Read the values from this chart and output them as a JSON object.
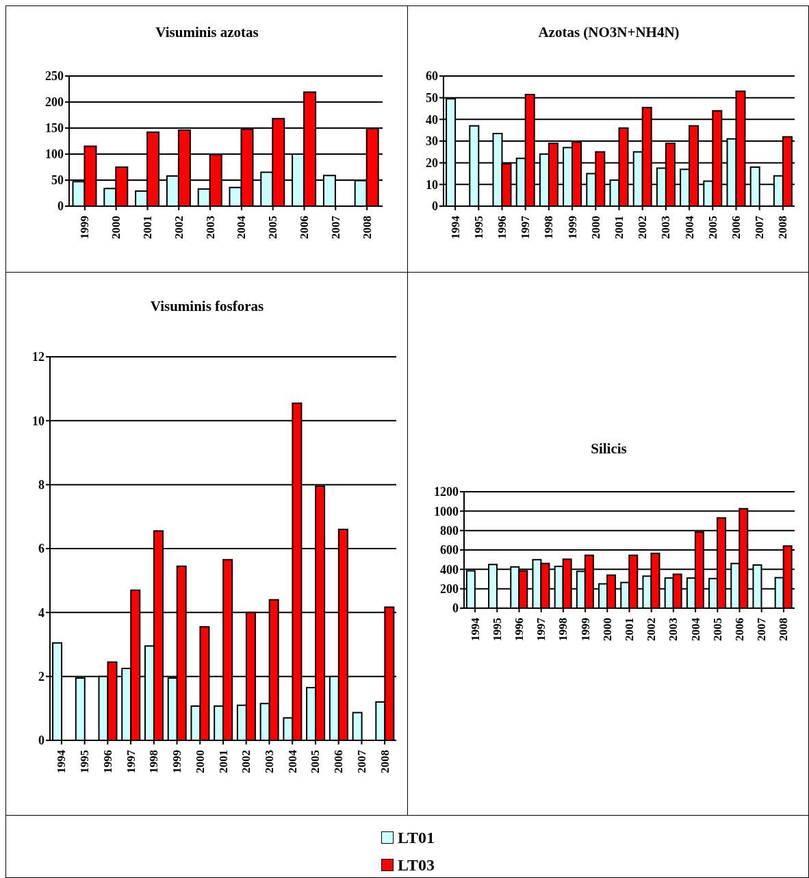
{
  "chart_data": [
    {
      "type": "bar",
      "title": "Visuminis azotas",
      "categories": [
        "1999",
        "2000",
        "2001",
        "2002",
        "2003",
        "2004",
        "2005",
        "2006",
        "2007",
        "2008"
      ],
      "series": [
        {
          "name": "LT01",
          "color": "#ccffff",
          "values": [
            47,
            34,
            29,
            58,
            33,
            36,
            65,
            100,
            59,
            49
          ]
        },
        {
          "name": "LT03",
          "color": "#ff0000",
          "values": [
            115,
            75,
            142,
            146,
            99,
            148,
            168,
            219,
            null,
            149
          ]
        }
      ],
      "ylim": [
        0,
        250
      ],
      "yticks": [
        0,
        50,
        100,
        150,
        200,
        250
      ],
      "grid": "y",
      "legend": "bottom"
    },
    {
      "type": "bar",
      "title": "Azotas (NO3N+NH4N)",
      "categories": [
        "1994",
        "1995",
        "1996",
        "1997",
        "1998",
        "1999",
        "2000",
        "2001",
        "2002",
        "2003",
        "2004",
        "2005",
        "2006",
        "2007",
        "2008"
      ],
      "series": [
        {
          "color": "#ccffff",
          "values": [
            49.5,
            37,
            33.5,
            22,
            24,
            27,
            15,
            12,
            25,
            17.5,
            17,
            11.5,
            31,
            18,
            14
          ]
        },
        {
          "color": "#ff0000",
          "values": [
            null,
            null,
            19.5,
            51.5,
            29,
            29.5,
            25,
            36,
            45.5,
            29,
            37,
            44,
            53,
            null,
            32
          ]
        }
      ],
      "ylim": [
        0,
        60
      ],
      "yticks": [
        0,
        10,
        20,
        30,
        40,
        50,
        60
      ],
      "grid": "y"
    },
    {
      "type": "bar",
      "title": "Visuminis fosforas",
      "categories": [
        "1994",
        "1995",
        "1996",
        "1997",
        "1998",
        "1999",
        "2000",
        "2001",
        "2002",
        "2003",
        "2004",
        "2005",
        "2006",
        "2007",
        "2008"
      ],
      "series": [
        {
          "color": "#ccffff",
          "values": [
            3.05,
            1.95,
            2.0,
            2.25,
            2.95,
            1.95,
            1.07,
            1.07,
            1.1,
            1.15,
            0.7,
            1.65,
            2.0,
            0.87,
            1.2
          ]
        },
        {
          "color": "#ff0000",
          "values": [
            null,
            null,
            2.45,
            4.7,
            6.55,
            5.45,
            3.55,
            5.65,
            4.0,
            4.4,
            10.55,
            7.95,
            6.6,
            null,
            4.17
          ]
        }
      ],
      "ylim": [
        0,
        12
      ],
      "yticks": [
        0,
        2,
        4,
        6,
        8,
        10,
        12
      ],
      "grid": "y"
    },
    {
      "type": "bar",
      "title": "Silicis",
      "categories": [
        "1994",
        "1995",
        "1996",
        "1997",
        "1998",
        "1999",
        "2000",
        "2001",
        "2002",
        "2003",
        "2004",
        "2005",
        "2006",
        "2007",
        "2008"
      ],
      "series": [
        {
          "color": "#ccffff",
          "values": [
            385,
            450,
            425,
            500,
            430,
            380,
            250,
            265,
            330,
            310,
            310,
            305,
            460,
            445,
            315
          ]
        },
        {
          "color": "#ff0000",
          "values": [
            null,
            null,
            385,
            460,
            505,
            545,
            340,
            545,
            565,
            350,
            785,
            930,
            1025,
            null,
            640
          ]
        }
      ],
      "ylim": [
        0,
        1200
      ],
      "yticks": [
        0,
        200,
        400,
        600,
        800,
        1000,
        1200
      ],
      "grid": "y"
    }
  ]
}
